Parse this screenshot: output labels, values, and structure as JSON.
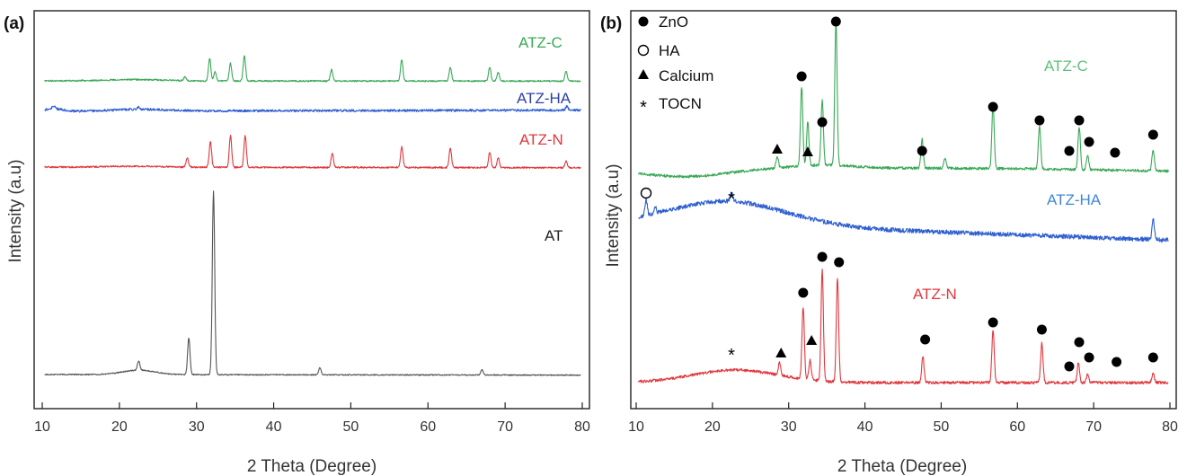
{
  "chart_data": [
    {
      "panel": "(a)",
      "type": "line",
      "xlabel": "2 Theta (Degree)",
      "ylabel": "Intensity (a.u)",
      "xlim": [
        10,
        80
      ],
      "xticks": [
        "10",
        "20",
        "30",
        "40",
        "50",
        "60",
        "70",
        "80"
      ],
      "yticks": false,
      "grid": false,
      "series": [
        {
          "name": "ATZ-C",
          "color": "#3aa857",
          "peaks": [
            [
              28.5,
              0.15
            ],
            [
              31.7,
              0.9
            ],
            [
              32.4,
              0.35
            ],
            [
              34.4,
              0.7
            ],
            [
              36.2,
              1.0
            ],
            [
              47.5,
              0.45
            ],
            [
              56.6,
              0.85
            ],
            [
              62.9,
              0.55
            ],
            [
              68.0,
              0.55
            ],
            [
              69.1,
              0.35
            ],
            [
              77.9,
              0.4
            ]
          ]
        },
        {
          "name": "ATZ-HA",
          "color": "#2f5fd0",
          "peaks": [
            [
              11.5,
              0.4
            ],
            [
              22.5,
              0.25
            ],
            [
              78.0,
              0.45
            ]
          ]
        },
        {
          "name": "ATZ-N",
          "color": "#e0383e",
          "peaks": [
            [
              28.8,
              0.3
            ],
            [
              31.8,
              0.8
            ],
            [
              34.4,
              1.0
            ],
            [
              36.3,
              1.0
            ],
            [
              47.6,
              0.45
            ],
            [
              56.6,
              0.65
            ],
            [
              62.9,
              0.6
            ],
            [
              68.0,
              0.5
            ],
            [
              69.1,
              0.3
            ],
            [
              77.9,
              0.2
            ]
          ]
        },
        {
          "name": "AT",
          "color": "#555555",
          "peaks": [
            [
              22.5,
              0.05
            ],
            [
              29.0,
              0.2
            ],
            [
              32.2,
              1.0
            ],
            [
              46.0,
              0.04
            ],
            [
              67.0,
              0.03
            ]
          ]
        }
      ]
    },
    {
      "panel": "(b)",
      "type": "line",
      "xlabel": "2 Theta (Degree)",
      "ylabel": "Intensity (a.u)",
      "xlim": [
        10,
        80
      ],
      "xticks": [
        "10",
        "20",
        "30",
        "40",
        "50",
        "60",
        "70",
        "80"
      ],
      "yticks": false,
      "grid": false,
      "legend": {
        "placement": "top-left",
        "entries": [
          {
            "marker": "filled-circle",
            "label": "ZnO"
          },
          {
            "marker": "open-circle",
            "label": "HA"
          },
          {
            "marker": "filled-triangle",
            "label": "Calcium"
          },
          {
            "marker": "asterisk",
            "label": "TOCN"
          }
        ]
      },
      "series": [
        {
          "name": "ATZ-C",
          "color": "#3aa857",
          "peaks": [
            [
              28.5,
              0.08
            ],
            [
              31.7,
              0.55
            ],
            [
              32.5,
              0.3
            ],
            [
              34.4,
              0.45
            ],
            [
              36.2,
              1.0
            ],
            [
              47.5,
              0.2
            ],
            [
              50.5,
              0.07
            ],
            [
              56.8,
              0.45
            ],
            [
              62.9,
              0.3
            ],
            [
              68.1,
              0.3
            ],
            [
              69.2,
              0.1
            ],
            [
              77.8,
              0.15
            ]
          ]
        },
        {
          "name": "ATZ-HA",
          "color": "#2f5fd0",
          "peaks": [
            [
              11.3,
              0.2
            ],
            [
              12.5,
              0.1
            ],
            [
              22.5,
              0.1
            ],
            [
              77.8,
              0.25
            ]
          ]
        },
        {
          "name": "ATZ-N",
          "color": "#e0383e",
          "peaks": [
            [
              28.8,
              0.1
            ],
            [
              31.9,
              0.55
            ],
            [
              32.8,
              0.15
            ],
            [
              34.4,
              0.85
            ],
            [
              36.4,
              0.8
            ],
            [
              47.6,
              0.2
            ],
            [
              56.8,
              0.4
            ],
            [
              63.2,
              0.3
            ],
            [
              68.0,
              0.15
            ],
            [
              69.2,
              0.06
            ],
            [
              77.8,
              0.07
            ]
          ]
        }
      ],
      "annotations": [
        {
          "marker": "filled-circle",
          "series": "ATZ-C",
          "x": [
            31.7,
            34.4,
            36.2,
            47.5,
            56.8,
            62.9,
            68.1,
            66.8,
            69.4,
            72.8,
            77.8
          ]
        },
        {
          "marker": "filled-triangle",
          "series": "ATZ-C",
          "x": [
            28.5,
            32.5
          ]
        },
        {
          "marker": "open-circle",
          "series": "ATZ-HA",
          "x": [
            11.3
          ]
        },
        {
          "marker": "asterisk",
          "series": "ATZ-HA",
          "x": [
            22.5
          ]
        },
        {
          "marker": "filled-circle",
          "series": "ATZ-N",
          "x": [
            31.9,
            34.4,
            36.6,
            47.9,
            56.8,
            63.2,
            68.1,
            66.8,
            69.4,
            73.0,
            77.8
          ]
        },
        {
          "marker": "filled-triangle",
          "series": "ATZ-N",
          "x": [
            29.0,
            33.0
          ]
        },
        {
          "marker": "asterisk",
          "series": "ATZ-N",
          "x": [
            22.5
          ]
        }
      ]
    }
  ]
}
